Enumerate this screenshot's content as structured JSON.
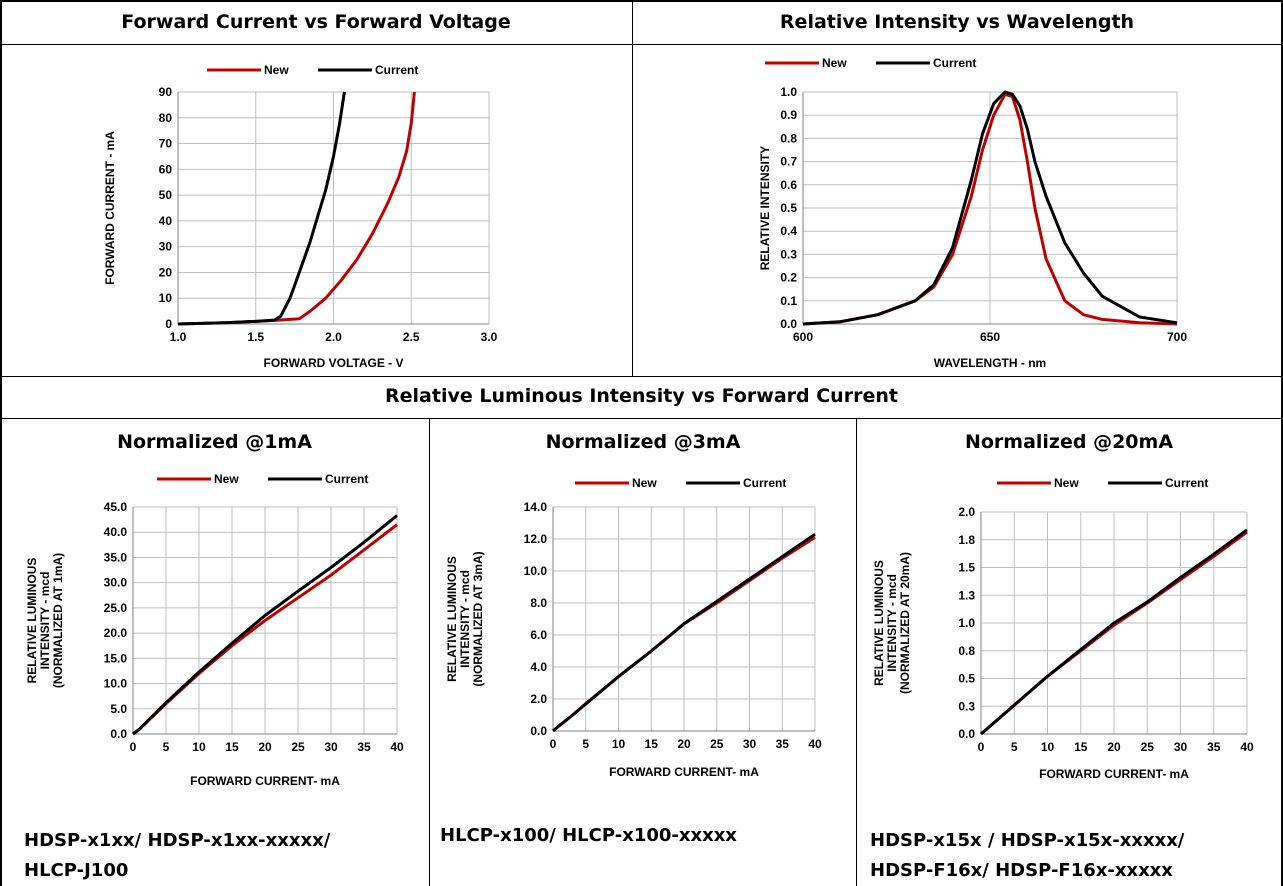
{
  "sections": {
    "top_left_title": "Forward Current vs Forward Voltage",
    "top_right_title": "Relative Intensity vs Wavelength",
    "middle_title": "Relative Luminous Intensity vs Forward Current"
  },
  "panels": [
    {
      "title": "Normalized @1mA",
      "note_lines": [
        "HDSP-x1xx/ HDSP-x1xx-xxxxx/",
        "HLCP-J100"
      ]
    },
    {
      "title": "Normalized @3mA",
      "note_lines": [
        "HLCP-x100/ HLCP-x100-xxxxx"
      ]
    },
    {
      "title": "Normalized @20mA",
      "note_lines": [
        "HDSP-x15x / HDSP-x15x-xxxxx/",
        "HDSP-F16x/ HDSP-F16x-xxxxx"
      ]
    }
  ],
  "colors": {
    "new": "#C00000",
    "current": "#000000",
    "grid": "#BFBFBF"
  },
  "chart_data": [
    {
      "type": "line",
      "xlabel": "FORWARD VOLTAGE - V",
      "ylabel": "FORWARD CURRENT - mA",
      "xlim": [
        1.0,
        3.0
      ],
      "ylim": [
        0,
        90
      ],
      "xticks": [
        "1.0",
        "1.5",
        "2.0",
        "2.5",
        "3.0"
      ],
      "yticks": [
        "0",
        "10",
        "20",
        "30",
        "40",
        "50",
        "60",
        "70",
        "80",
        "90"
      ],
      "grid": true,
      "legend": "top",
      "series": [
        {
          "name": "New",
          "color": "#C00000",
          "x": [
            1.0,
            1.3,
            1.5,
            1.65,
            1.78,
            1.85,
            1.95,
            2.05,
            2.15,
            2.25,
            2.35,
            2.42,
            2.47,
            2.5,
            2.52
          ],
          "y": [
            0,
            0.5,
            1,
            1.5,
            2,
            5,
            10,
            17,
            25,
            35,
            47,
            57,
            67,
            78,
            90
          ]
        },
        {
          "name": "Current",
          "color": "#000000",
          "x": [
            1.0,
            1.3,
            1.5,
            1.62,
            1.66,
            1.72,
            1.78,
            1.85,
            1.9,
            1.95,
            2.0,
            2.04,
            2.07
          ],
          "y": [
            0,
            0.5,
            1,
            1.5,
            3,
            10,
            20,
            32,
            42,
            52,
            65,
            78,
            90
          ]
        }
      ]
    },
    {
      "type": "line",
      "xlabel": "WAVELENGTH - nm",
      "ylabel": "RELATIVE INTENSITY",
      "xlim": [
        600,
        700
      ],
      "ylim": [
        0,
        1
      ],
      "xticks": [
        "600",
        "650",
        "700"
      ],
      "yticks": [
        "0.0",
        "0.1",
        "0.2",
        "0.3",
        "0.4",
        "0.5",
        "0.6",
        "0.7",
        "0.8",
        "0.9",
        "1.0"
      ],
      "grid": true,
      "legend": "top",
      "series": [
        {
          "name": "New",
          "color": "#C00000",
          "x": [
            600,
            610,
            620,
            630,
            635,
            640,
            645,
            648,
            651,
            654,
            656,
            658,
            660,
            662,
            665,
            670,
            675,
            680,
            690,
            700
          ],
          "y": [
            0,
            0.01,
            0.04,
            0.1,
            0.16,
            0.3,
            0.55,
            0.75,
            0.9,
            0.99,
            0.98,
            0.88,
            0.7,
            0.5,
            0.28,
            0.1,
            0.04,
            0.02,
            0.005,
            0
          ]
        },
        {
          "name": "Current",
          "color": "#000000",
          "x": [
            600,
            610,
            620,
            630,
            635,
            640,
            645,
            648,
            651,
            654,
            656,
            658,
            660,
            662,
            665,
            670,
            675,
            680,
            690,
            700
          ],
          "y": [
            0,
            0.01,
            0.04,
            0.1,
            0.17,
            0.33,
            0.62,
            0.82,
            0.95,
            1.0,
            0.99,
            0.94,
            0.84,
            0.7,
            0.55,
            0.35,
            0.22,
            0.12,
            0.03,
            0.005
          ]
        }
      ]
    },
    {
      "type": "line",
      "xlabel": "FORWARD CURRENT- mA",
      "ylabel": [
        "RELATIVE LUMINOUS",
        "INTENSITY - mcd",
        "(NORMALIZED AT 1mA)"
      ],
      "xlim": [
        0,
        40
      ],
      "ylim": [
        0,
        45
      ],
      "xticks": [
        "0",
        "5",
        "10",
        "15",
        "20",
        "25",
        "30",
        "35",
        "40"
      ],
      "yticks": [
        "0.0",
        "5.0",
        "10.0",
        "15.0",
        "20.0",
        "25.0",
        "30.0",
        "35.0",
        "40.0",
        "45.0"
      ],
      "grid": true,
      "legend": "top",
      "series": [
        {
          "name": "New",
          "color": "#C00000",
          "x": [
            0,
            1,
            5,
            10,
            15,
            20,
            25,
            30,
            35,
            40
          ],
          "y": [
            0,
            1,
            6,
            12,
            17.5,
            22.5,
            27,
            31.5,
            36.5,
            41.5
          ]
        },
        {
          "name": "Current",
          "color": "#000000",
          "x": [
            0,
            1,
            5,
            10,
            15,
            20,
            25,
            30,
            35,
            40
          ],
          "y": [
            0,
            1,
            6.2,
            12.3,
            18,
            23.5,
            28.3,
            33,
            38,
            43.3
          ]
        }
      ]
    },
    {
      "type": "line",
      "xlabel": "FORWARD CURRENT- mA",
      "ylabel": [
        "RELATIVE LUMINOUS",
        "INTENSITY - mcd",
        "(NORMALIZED AT 3mA)"
      ],
      "xlim": [
        0,
        40
      ],
      "ylim": [
        0,
        14
      ],
      "xticks": [
        "0",
        "5",
        "10",
        "15",
        "20",
        "25",
        "30",
        "35",
        "40"
      ],
      "yticks": [
        "0.0",
        "2.0",
        "4.0",
        "6.0",
        "8.0",
        "10.0",
        "12.0",
        "14.0"
      ],
      "grid": true,
      "legend": "top",
      "series": [
        {
          "name": "New",
          "color": "#C00000",
          "x": [
            0,
            1,
            3,
            5,
            10,
            15,
            20,
            25,
            30,
            35,
            40
          ],
          "y": [
            0,
            0.35,
            1,
            1.7,
            3.4,
            5,
            6.7,
            8,
            9.4,
            10.8,
            12.1
          ]
        },
        {
          "name": "Current",
          "color": "#000000",
          "x": [
            0,
            1,
            3,
            5,
            10,
            15,
            20,
            25,
            30,
            35,
            40
          ],
          "y": [
            0,
            0.35,
            1,
            1.7,
            3.4,
            5,
            6.7,
            8.1,
            9.5,
            10.9,
            12.3
          ]
        }
      ]
    },
    {
      "type": "line",
      "xlabel": "FORWARD CURRENT- mA",
      "ylabel": [
        "RELATIVE LUMINOUS",
        "INTENSITY - mcd",
        "(NORMALIZED AT 20mA)"
      ],
      "xlim": [
        0,
        40
      ],
      "ylim": [
        0,
        2.0
      ],
      "xticks": [
        "0",
        "5",
        "10",
        "15",
        "20",
        "25",
        "30",
        "35",
        "40"
      ],
      "yticks": [
        "0.0",
        "0.3",
        "0.5",
        "0.8",
        "1.0",
        "1.3",
        "1.5",
        "1.8",
        "2.0"
      ],
      "grid": true,
      "legend": "top",
      "series": [
        {
          "name": "New",
          "color": "#C00000",
          "x": [
            0,
            5,
            10,
            15,
            20,
            25,
            30,
            35,
            40
          ],
          "y": [
            0,
            0.26,
            0.52,
            0.75,
            0.98,
            1.18,
            1.39,
            1.6,
            1.82
          ]
        },
        {
          "name": "Current",
          "color": "#000000",
          "x": [
            0,
            5,
            10,
            15,
            20,
            25,
            30,
            35,
            40
          ],
          "y": [
            0,
            0.26,
            0.52,
            0.76,
            1.0,
            1.19,
            1.41,
            1.62,
            1.84
          ]
        }
      ]
    }
  ]
}
